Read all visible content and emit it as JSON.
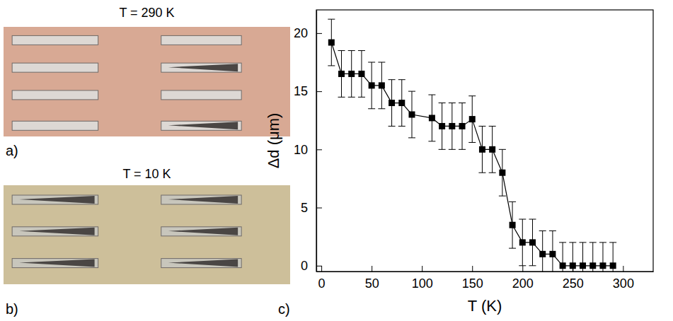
{
  "panels": [
    {
      "label": "a)",
      "title": "T = 290 K"
    },
    {
      "label": "b)",
      "title": "T = 10 K"
    }
  ],
  "chart_data": {
    "type": "line",
    "panel_label": "c)",
    "x_label": "T (K)",
    "y_label": "Δd (μm)",
    "marker": "square",
    "color": "#000000",
    "x": [
      10,
      20,
      30,
      40,
      50,
      60,
      70,
      80,
      90,
      110,
      120,
      130,
      140,
      150,
      160,
      170,
      180,
      190,
      200,
      210,
      220,
      230,
      240,
      250,
      260,
      270,
      280,
      290
    ],
    "values": [
      19.2,
      16.5,
      16.5,
      16.5,
      15.5,
      15.5,
      14,
      14,
      13,
      12.7,
      12,
      12,
      12,
      12.6,
      10,
      10,
      8,
      3.5,
      2,
      2,
      1,
      1,
      0,
      0,
      0,
      0,
      0,
      0
    ],
    "errors": [
      2,
      2,
      2,
      2,
      2,
      2,
      2,
      2,
      2,
      2,
      2,
      2,
      2,
      2,
      2,
      2,
      2,
      2,
      2,
      2,
      2,
      2,
      2,
      2,
      2,
      2,
      2,
      2
    ],
    "xlim": [
      -5,
      330
    ],
    "xticks": [
      0,
      50,
      100,
      150,
      200,
      250,
      300
    ],
    "ylim": [
      -0.5,
      22
    ],
    "yticks": [
      0,
      5,
      10,
      15,
      20
    ],
    "grid": false
  }
}
